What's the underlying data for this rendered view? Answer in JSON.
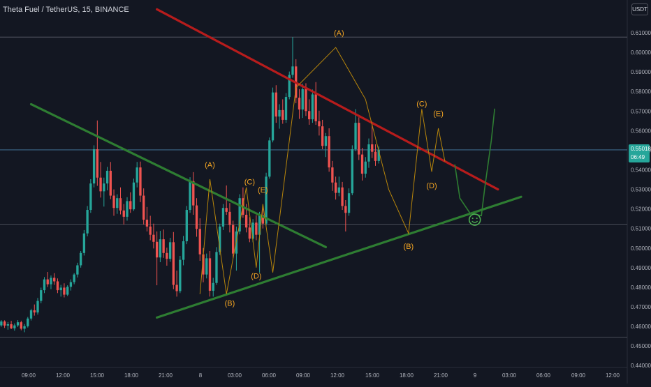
{
  "header": {
    "symbol": "Theta Fuel / TetherUS, 15, BINANCE",
    "currency": "USDT"
  },
  "price_tag": {
    "price": "0.55018",
    "countdown": "06:49"
  },
  "colors": {
    "background": "#131722",
    "up": "#26a69a",
    "down": "#ef5350",
    "green_trendline": "#2e7d32",
    "red_trendline": "#b71c1c",
    "wave_label": "#f5a623",
    "wave_path": "#b8860b",
    "axis_text": "#b2b5be",
    "grid": "#2a2e39"
  },
  "chart_data": {
    "type": "candlestick",
    "ylim": [
      0.44,
      0.618
    ],
    "y_ticks": [
      "0.61000",
      "0.60000",
      "0.59000",
      "0.58000",
      "0.57000",
      "0.56000",
      "0.55000",
      "0.54000",
      "0.53000",
      "0.52000",
      "0.51000",
      "0.50000",
      "0.49000",
      "0.48000",
      "0.47000",
      "0.46000",
      "0.45000",
      "0.44000"
    ],
    "x_ticks": [
      "09:00",
      "12:00",
      "15:00",
      "18:00",
      "21:00",
      "8",
      "03:00",
      "06:00",
      "09:00",
      "12:00",
      "15:00",
      "18:00",
      "21:00",
      "9",
      "03:00",
      "06:00",
      "09:00",
      "12:00"
    ],
    "horizontal_levels": [
      0.6078,
      0.5122,
      0.4545
    ],
    "current_price": 0.55018,
    "candles": [
      [
        0.4605,
        0.4632,
        0.4598,
        0.4625
      ],
      [
        0.4625,
        0.4631,
        0.4592,
        0.4604
      ],
      [
        0.4604,
        0.4622,
        0.4583,
        0.4611
      ],
      [
        0.4611,
        0.4628,
        0.4586,
        0.459
      ],
      [
        0.459,
        0.4615,
        0.4578,
        0.4605
      ],
      [
        0.4605,
        0.4632,
        0.4597,
        0.4621
      ],
      [
        0.4621,
        0.4629,
        0.458,
        0.4588
      ],
      [
        0.4588,
        0.4612,
        0.457,
        0.4601
      ],
      [
        0.4601,
        0.4648,
        0.4594,
        0.464
      ],
      [
        0.464,
        0.469,
        0.463,
        0.4682
      ],
      [
        0.4682,
        0.4712,
        0.4655,
        0.4671
      ],
      [
        0.4671,
        0.4745,
        0.466,
        0.473
      ],
      [
        0.473,
        0.4798,
        0.4718,
        0.4785
      ],
      [
        0.4785,
        0.4852,
        0.477,
        0.484
      ],
      [
        0.484,
        0.4878,
        0.4801,
        0.4815
      ],
      [
        0.4815,
        0.486,
        0.479,
        0.4848
      ],
      [
        0.4848,
        0.4872,
        0.4812,
        0.483
      ],
      [
        0.483,
        0.4845,
        0.477,
        0.4785
      ],
      [
        0.4785,
        0.4812,
        0.4752,
        0.4798
      ],
      [
        0.4798,
        0.482,
        0.4748,
        0.4762
      ],
      [
        0.4762,
        0.481,
        0.4755,
        0.4802
      ],
      [
        0.4802,
        0.484,
        0.4783,
        0.4826
      ],
      [
        0.4826,
        0.4872,
        0.4815,
        0.4865
      ],
      [
        0.4865,
        0.4925,
        0.485,
        0.4912
      ],
      [
        0.4912,
        0.4985,
        0.49,
        0.4975
      ],
      [
        0.4975,
        0.5092,
        0.4962,
        0.5075
      ],
      [
        0.5075,
        0.5215,
        0.506,
        0.5195
      ],
      [
        0.5195,
        0.5352,
        0.518,
        0.533
      ],
      [
        0.533,
        0.5525,
        0.531,
        0.5505
      ],
      [
        0.5505,
        0.5652,
        0.5318,
        0.536
      ],
      [
        0.536,
        0.544,
        0.5258,
        0.529
      ],
      [
        0.529,
        0.536,
        0.5212,
        0.533
      ],
      [
        0.533,
        0.5415,
        0.5295,
        0.5395
      ],
      [
        0.5395,
        0.544,
        0.525,
        0.5268
      ],
      [
        0.5268,
        0.53,
        0.5165,
        0.5205
      ],
      [
        0.5205,
        0.5275,
        0.5175,
        0.5255
      ],
      [
        0.5255,
        0.531,
        0.5172,
        0.5192
      ],
      [
        0.5192,
        0.5225,
        0.512,
        0.516
      ],
      [
        0.516,
        0.526,
        0.514,
        0.524
      ],
      [
        0.524,
        0.5285,
        0.518,
        0.5198
      ],
      [
        0.5198,
        0.5355,
        0.519,
        0.5335
      ],
      [
        0.5335,
        0.544,
        0.531,
        0.5412
      ],
      [
        0.5412,
        0.5442,
        0.5235,
        0.5268
      ],
      [
        0.5268,
        0.5305,
        0.512,
        0.5145
      ],
      [
        0.5145,
        0.521,
        0.5085,
        0.511
      ],
      [
        0.511,
        0.5165,
        0.504,
        0.5068
      ],
      [
        0.5068,
        0.5125,
        0.4998,
        0.5032
      ],
      [
        0.5032,
        0.5085,
        0.481,
        0.4952
      ],
      [
        0.4952,
        0.5088,
        0.4928,
        0.5045
      ],
      [
        0.5045,
        0.5095,
        0.495,
        0.4975
      ],
      [
        0.4975,
        0.5002,
        0.491,
        0.4945
      ],
      [
        0.4945,
        0.5052,
        0.493,
        0.503
      ],
      [
        0.503,
        0.5082,
        0.479,
        0.4812
      ],
      [
        0.4812,
        0.4885,
        0.4752,
        0.478
      ],
      [
        0.478,
        0.496,
        0.477,
        0.494
      ],
      [
        0.494,
        0.5062,
        0.4912,
        0.5035
      ],
      [
        0.5035,
        0.5215,
        0.502,
        0.5195
      ],
      [
        0.5195,
        0.5362,
        0.518,
        0.5342
      ],
      [
        0.5342,
        0.5388,
        0.517,
        0.5218
      ],
      [
        0.5218,
        0.5255,
        0.5058,
        0.5098
      ],
      [
        0.5098,
        0.5152,
        0.4935,
        0.4968
      ],
      [
        0.4968,
        0.5,
        0.4825,
        0.4865
      ],
      [
        0.4865,
        0.4972,
        0.4845,
        0.4948
      ],
      [
        0.4948,
        0.4985,
        0.4752,
        0.4782
      ],
      [
        0.4782,
        0.4848,
        0.4752,
        0.4822
      ],
      [
        0.4822,
        0.5005,
        0.4812,
        0.498
      ],
      [
        0.498,
        0.5125,
        0.4965,
        0.511
      ],
      [
        0.511,
        0.5225,
        0.5092,
        0.5205
      ],
      [
        0.5205,
        0.532,
        0.517,
        0.5185
      ],
      [
        0.5185,
        0.523,
        0.508,
        0.5118
      ],
      [
        0.5118,
        0.514,
        0.495,
        0.4972
      ],
      [
        0.4972,
        0.511,
        0.4885,
        0.5085
      ],
      [
        0.5085,
        0.5275,
        0.507,
        0.5255
      ],
      [
        0.5255,
        0.531,
        0.5155,
        0.517
      ],
      [
        0.517,
        0.5225,
        0.508,
        0.5105
      ],
      [
        0.5105,
        0.5158,
        0.503,
        0.5048
      ],
      [
        0.5048,
        0.5148,
        0.503,
        0.513
      ],
      [
        0.513,
        0.5168,
        0.504,
        0.5068
      ],
      [
        0.5068,
        0.5185,
        0.4875,
        0.5168
      ],
      [
        0.5168,
        0.5208,
        0.51,
        0.5125
      ],
      [
        0.5125,
        0.5385,
        0.5115,
        0.5365
      ],
      [
        0.5365,
        0.5565,
        0.5355,
        0.555
      ],
      [
        0.555,
        0.582,
        0.554,
        0.5795
      ],
      [
        0.5795,
        0.5832,
        0.564,
        0.5672
      ],
      [
        0.5672,
        0.5735,
        0.561,
        0.5705
      ],
      [
        0.5705,
        0.576,
        0.5635,
        0.5655
      ],
      [
        0.5655,
        0.5792,
        0.564,
        0.5772
      ],
      [
        0.5772,
        0.5902,
        0.576,
        0.5885
      ],
      [
        0.5885,
        0.6078,
        0.587,
        0.5928
      ],
      [
        0.5928,
        0.5965,
        0.574,
        0.5768
      ],
      [
        0.5768,
        0.5812,
        0.566,
        0.5708
      ],
      [
        0.5708,
        0.584,
        0.5665,
        0.5812
      ],
      [
        0.5812,
        0.5842,
        0.5675,
        0.57
      ],
      [
        0.57,
        0.576,
        0.563,
        0.5658
      ],
      [
        0.5658,
        0.581,
        0.564,
        0.5785
      ],
      [
        0.5785,
        0.5848,
        0.563,
        0.5648
      ],
      [
        0.5648,
        0.5702,
        0.5575,
        0.5622
      ],
      [
        0.5622,
        0.5655,
        0.5505,
        0.5522
      ],
      [
        0.5522,
        0.5588,
        0.5465,
        0.5572
      ],
      [
        0.5572,
        0.5612,
        0.539,
        0.5412
      ],
      [
        0.5412,
        0.5445,
        0.5292,
        0.5335
      ],
      [
        0.5335,
        0.5365,
        0.5248,
        0.5282
      ],
      [
        0.5282,
        0.5365,
        0.5265,
        0.531
      ],
      [
        0.531,
        0.5338,
        0.5195,
        0.5215
      ],
      [
        0.5215,
        0.5245,
        0.5085,
        0.518
      ],
      [
        0.518,
        0.5305,
        0.5165,
        0.528
      ],
      [
        0.528,
        0.5525,
        0.527,
        0.5505
      ],
      [
        0.5505,
        0.571,
        0.5495,
        0.564
      ],
      [
        0.564,
        0.5668,
        0.545,
        0.5478
      ],
      [
        0.5478,
        0.5512,
        0.5345,
        0.538
      ],
      [
        0.538,
        0.5465,
        0.536,
        0.5442
      ],
      [
        0.5442,
        0.556,
        0.541,
        0.553
      ],
      [
        0.553,
        0.5645,
        0.546,
        0.5492
      ],
      [
        0.5492,
        0.553,
        0.542,
        0.5445
      ],
      [
        0.5445,
        0.552,
        0.5432,
        0.5502
      ]
    ],
    "trendlines": [
      {
        "name": "red-resistance",
        "color": "red",
        "points": [
          [
            47.5,
            0.622
          ],
          [
            150.5,
            0.53
          ]
        ]
      },
      {
        "name": "green-upper",
        "color": "green",
        "points": [
          [
            9.5,
            0.5735
          ],
          [
            98.5,
            0.5005
          ]
        ]
      },
      {
        "name": "green-support",
        "color": "green",
        "points": [
          [
            47.5,
            0.4645
          ],
          [
            157.5,
            0.5262
          ]
        ]
      }
    ],
    "wave_labels": [
      {
        "text": "(A)",
        "x": 102.5,
        "y": 0.6085
      },
      {
        "text": "(B)",
        "x": 123.5,
        "y": 0.4995
      },
      {
        "text": "(C)",
        "x": 127.5,
        "y": 0.5725
      },
      {
        "text": "(D)",
        "x": 130.5,
        "y": 0.5305
      },
      {
        "text": "(E)",
        "x": 132.5,
        "y": 0.5675
      },
      {
        "text": "(A)",
        "x": 63.5,
        "y": 0.5412
      },
      {
        "text": "(B)",
        "x": 69.5,
        "y": 0.4705
      },
      {
        "text": "(C)",
        "x": 75.5,
        "y": 0.5325
      },
      {
        "text": "(D)",
        "x": 77.5,
        "y": 0.4845
      },
      {
        "text": "(E)",
        "x": 79.5,
        "y": 0.5285
      }
    ],
    "wave_paths": [
      [
        [
          60.5,
          0.4765
        ],
        [
          63.5,
          0.5352
        ],
        [
          68.5,
          0.4765
        ],
        [
          74.5,
          0.531
        ],
        [
          77.5,
          0.49
        ],
        [
          79.5,
          0.5225
        ],
        [
          82.5,
          0.4875
        ]
      ],
      [
        [
          82.5,
          0.4875
        ],
        [
          89.5,
          0.582
        ],
        [
          101.5,
          0.6025
        ],
        [
          110.5,
          0.576
        ],
        [
          117.5,
          0.53
        ],
        [
          123.5,
          0.5075
        ],
        [
          127.5,
          0.571
        ],
        [
          130.5,
          0.539
        ],
        [
          132.5,
          0.5612
        ],
        [
          134.5,
          0.5442
        ]
      ]
    ],
    "projection_path": [
      [
        137.5,
        0.5425
      ],
      [
        139.0,
        0.5255
      ],
      [
        142.0,
        0.518
      ],
      [
        145.5,
        0.5165
      ],
      [
        146.5,
        0.5305
      ],
      [
        148.5,
        0.555
      ],
      [
        149.5,
        0.571
      ]
    ],
    "smiley": {
      "x": 143.5,
      "y": 0.5145
    }
  }
}
